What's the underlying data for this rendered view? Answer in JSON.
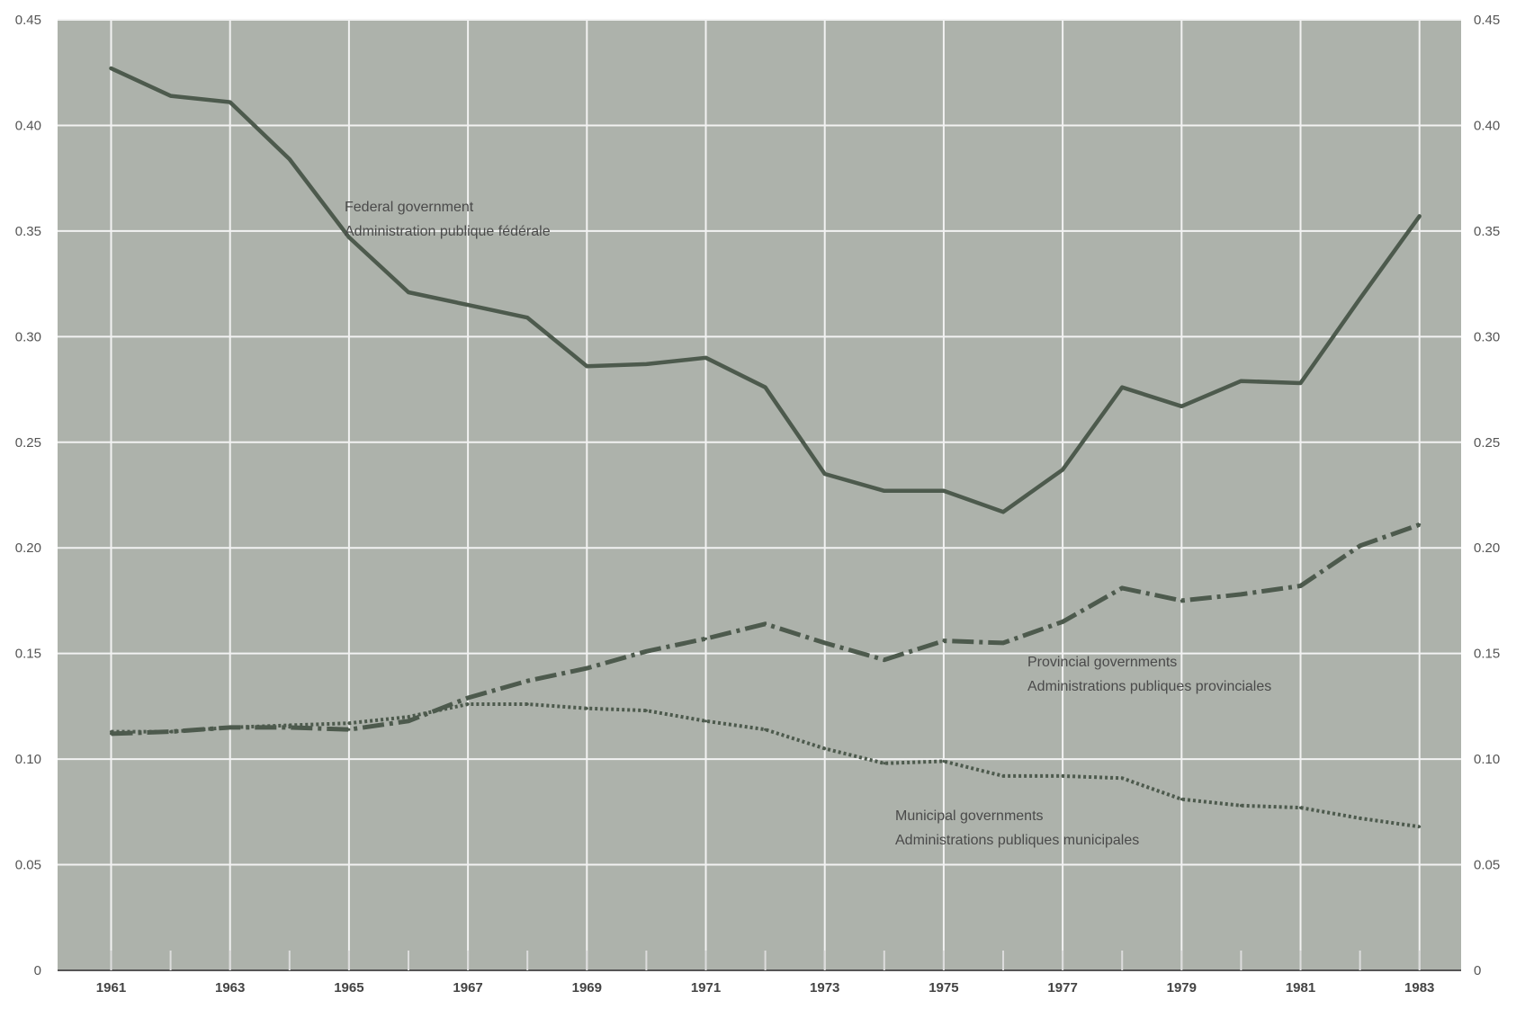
{
  "chart_data": {
    "type": "line",
    "title": "",
    "xlabel": "",
    "ylabel": "",
    "xlim": [
      1960.1,
      1983.7
    ],
    "ylim": [
      0,
      0.45
    ],
    "grid": true,
    "background_color": "#adb2ab",
    "grid_color": "#f2f2f2",
    "x_tick_labels": [
      "1961",
      "1963",
      "1965",
      "1967",
      "1969",
      "1971",
      "1973",
      "1975",
      "1977",
      "1979",
      "1981",
      "1983"
    ],
    "x_tick_values": [
      1961,
      1963,
      1965,
      1967,
      1969,
      1971,
      1973,
      1975,
      1977,
      1979,
      1981,
      1983
    ],
    "y_tick_values": [
      0,
      0.05,
      0.1,
      0.15,
      0.2,
      0.25,
      0.3,
      0.35,
      0.4,
      0.45
    ],
    "y_tick_labels": [
      "0",
      "0.05",
      "0.10",
      "0.15",
      "0.20",
      "0.25",
      "0.30",
      "0.35",
      "0.40",
      "0.45"
    ],
    "x": [
      1961,
      1962,
      1963,
      1964,
      1965,
      1966,
      1967,
      1968,
      1969,
      1970,
      1971,
      1972,
      1973,
      1974,
      1975,
      1976,
      1977,
      1978,
      1979,
      1980,
      1981,
      1982,
      1983
    ],
    "series": [
      {
        "annotation": [
          "Federal government",
          "Administration publique fédérale"
        ],
        "style": "solid",
        "color": "#4d5a4d",
        "values": [
          0.427,
          0.414,
          0.411,
          0.384,
          0.347,
          0.321,
          0.315,
          0.309,
          0.286,
          0.287,
          0.29,
          0.276,
          0.235,
          0.227,
          0.227,
          0.217,
          0.237,
          0.276,
          0.267,
          0.279,
          0.278,
          0.318,
          0.357
        ]
      },
      {
        "annotation": [
          "Provincial governments",
          "Administrations publiques provinciales"
        ],
        "style": "dashdot",
        "color": "#4d5a4d",
        "values": [
          0.112,
          0.113,
          0.115,
          0.115,
          0.114,
          0.118,
          0.129,
          0.137,
          0.143,
          0.151,
          0.157,
          0.164,
          0.155,
          0.147,
          0.156,
          0.155,
          0.165,
          0.181,
          0.175,
          0.178,
          0.182,
          0.201,
          0.211
        ]
      },
      {
        "annotation": [
          "Municipal governments",
          "Administrations publiques municipales"
        ],
        "style": "dotted",
        "color": "#4d5a4d",
        "values": [
          0.113,
          0.113,
          0.115,
          0.116,
          0.117,
          0.12,
          0.126,
          0.126,
          0.124,
          0.123,
          0.118,
          0.114,
          0.105,
          0.098,
          0.099,
          0.092,
          0.092,
          0.091,
          0.081,
          0.078,
          0.077,
          0.072,
          0.068
        ]
      }
    ]
  }
}
